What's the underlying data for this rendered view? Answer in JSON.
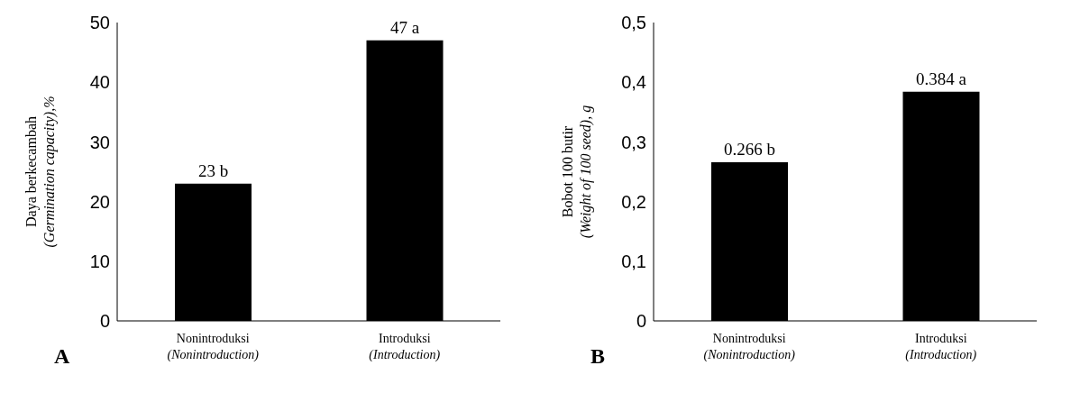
{
  "chart_data": [
    {
      "type": "bar",
      "ylabel": "Daya berkecambah\n(Germination capacity),%",
      "categories": [
        "Nonintroduksi\n(Nonintroduction)",
        "Introduksi\n(Introduction)"
      ],
      "values": [
        23,
        47
      ],
      "value_labels": [
        "23 b",
        "47 a"
      ],
      "color": "#000000",
      "ylim": [
        0,
        50
      ],
      "yticks": [
        0,
        10,
        20,
        30,
        40,
        50
      ],
      "grid": false,
      "legend": false,
      "annotations": [
        "A"
      ]
    },
    {
      "type": "bar",
      "ylabel": "Bobot 100 butir\n(Weight of 100 seed), g",
      "categories": [
        "Nonintroduksi\n(Nonintroduction)",
        "Introduksi\n(Introduction)"
      ],
      "values": [
        0.266,
        0.384
      ],
      "value_labels": [
        "0.266 b",
        "0.384 a"
      ],
      "color": "#000000",
      "ylim": [
        0,
        0.5
      ],
      "yticks": [
        {
          "value": 0,
          "label": "0"
        },
        {
          "value": 0.1,
          "label": "0,1"
        },
        {
          "value": 0.2,
          "label": "0,2"
        },
        {
          "value": 0.3,
          "label": "0,3"
        },
        {
          "value": 0.4,
          "label": "0,4"
        },
        {
          "value": 0.5,
          "label": "0,5"
        }
      ],
      "grid": false,
      "legend": false,
      "annotations": [
        "B"
      ]
    }
  ]
}
